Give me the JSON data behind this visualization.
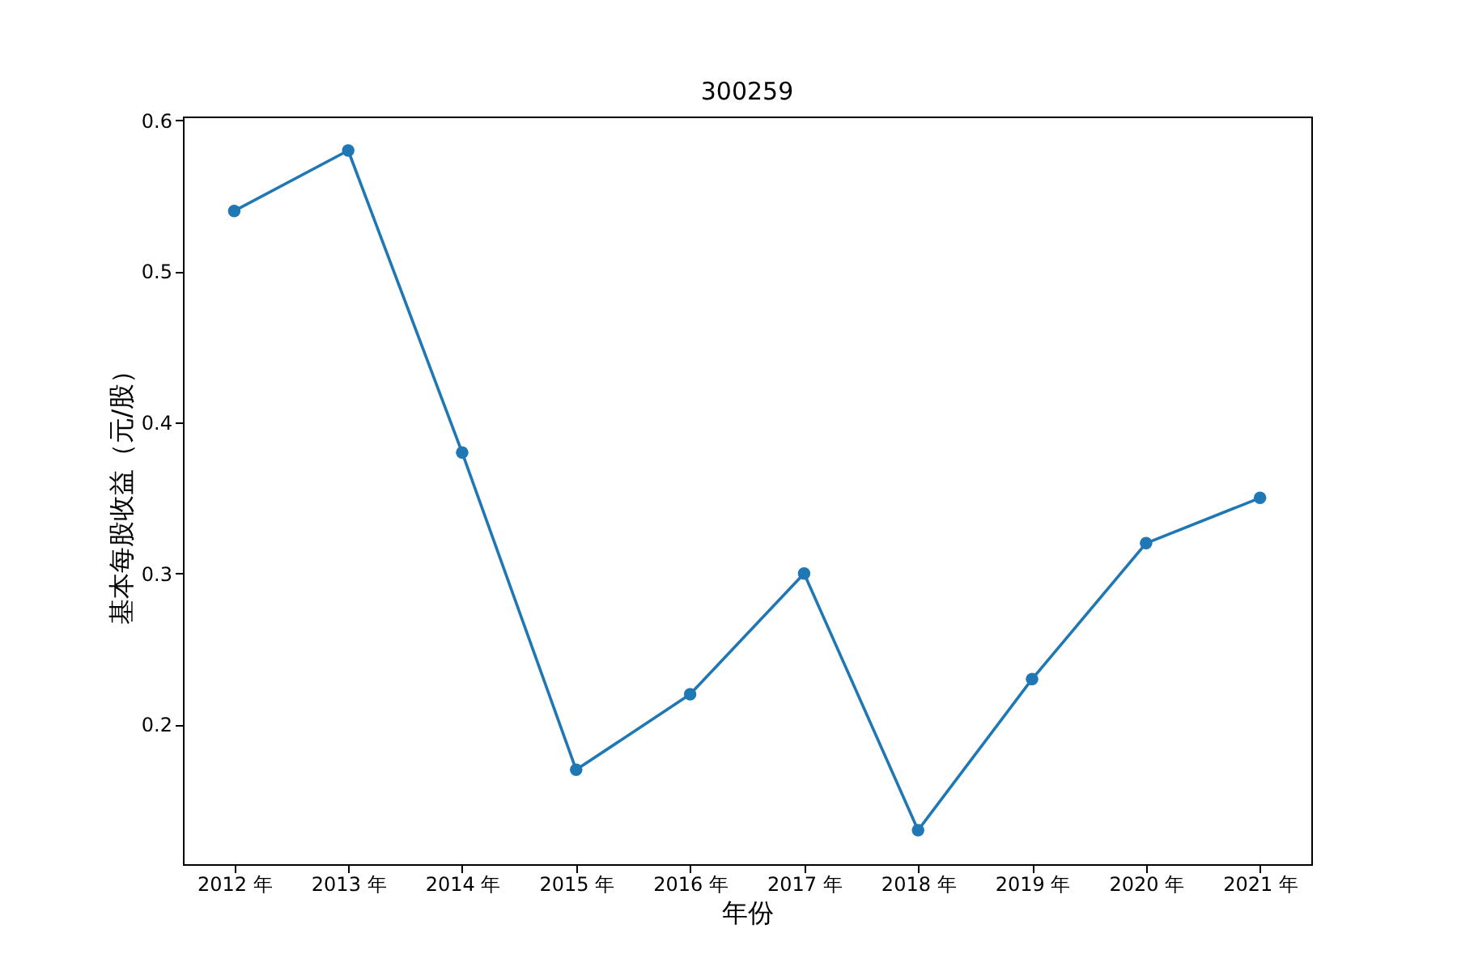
{
  "chart_data": {
    "type": "line",
    "title": "300259",
    "xlabel": "年份",
    "ylabel": "基本每股收益（元/股）",
    "categories": [
      "2012 年",
      "2013 年",
      "2014 年",
      "2015 年",
      "2016 年",
      "2017 年",
      "2018 年",
      "2019 年",
      "2020 年",
      "2021 年"
    ],
    "series": [
      {
        "color": "#1f77b4",
        "values": [
          0.54,
          0.58,
          0.38,
          0.17,
          0.22,
          0.3,
          0.13,
          0.23,
          0.32,
          0.35
        ]
      }
    ],
    "ylim": [
      0.1075,
      0.6025
    ],
    "yticks": [
      0.2,
      0.3,
      0.4,
      0.5,
      0.6
    ],
    "marker": "circle",
    "line_style": "solid",
    "grid": false
  }
}
